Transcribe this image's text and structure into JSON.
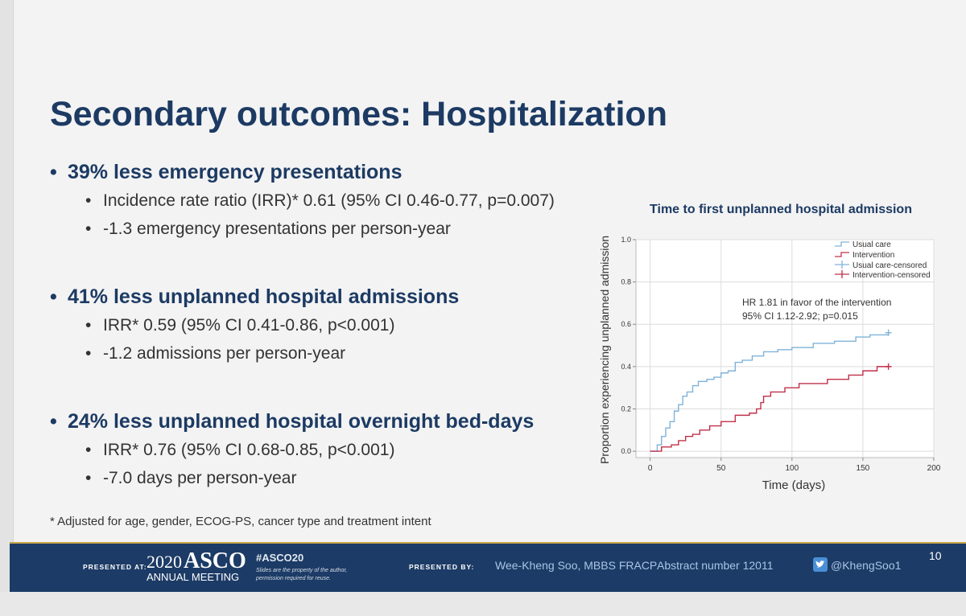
{
  "slide": {
    "title": "Secondary outcomes: Hospitalization",
    "sections": [
      {
        "heading": "39% less emergency presentations",
        "items": [
          "Incidence rate ratio (IRR)* 0.61 (95% CI 0.46-0.77, p=0.007)",
          "-1.3 emergency presentations per person-year"
        ]
      },
      {
        "heading": "41% less unplanned hospital admissions",
        "items": [
          "IRR* 0.59 (95% CI 0.41-0.86, p<0.001)",
          "-1.2 admissions per person-year"
        ]
      },
      {
        "heading": "24% less unplanned hospital overnight bed-days",
        "items": [
          "IRR* 0.76 (95% CI 0.68-0.85, p<0.001)",
          "-7.0 days per person-year"
        ]
      }
    ],
    "footnote": "* Adjusted for age, gender, ECOG-PS, cancer type and treatment intent",
    "page_number": "10"
  },
  "footer": {
    "presented_at_label": "PRESENTED AT:",
    "meeting_year": "2020",
    "meeting_brand": "ASCO",
    "meeting_sub": "ANNUAL MEETING",
    "hashtag": "#ASCO20",
    "disclaimer_line1": "Slides are the property of the author,",
    "disclaimer_line2": "permission required for reuse.",
    "presented_by_label": "PRESENTED BY:",
    "presenter": "Wee-Kheng Soo, MBBS FRACP",
    "abstract": "Abstract number 12011",
    "twitter_handle": "@KhengSoo1",
    "twitter_icon": "twitter-bird-icon",
    "brand_color": "#1c3b66"
  },
  "chart_data": {
    "type": "line",
    "step": true,
    "title": "Time to first unplanned hospital admission",
    "xlabel": "Time (days)",
    "ylabel": "Proportion experiencing unplanned admission",
    "xlim": [
      -10,
      200
    ],
    "ylim": [
      -0.03,
      1.0
    ],
    "xticks": [
      0,
      50,
      100,
      150,
      200
    ],
    "yticks": [
      0.0,
      0.2,
      0.4,
      0.6,
      0.8,
      1.0
    ],
    "grid": true,
    "legend_position": "top-right",
    "annotation": [
      "HR 1.81 in favor of the intervention",
      "95% CI 1.12-2.92; p=0.015"
    ],
    "series": [
      {
        "name": "Usual care",
        "color": "#7fb3d9",
        "points": [
          [
            0,
            0
          ],
          [
            5,
            0.03
          ],
          [
            8,
            0.07
          ],
          [
            11,
            0.11
          ],
          [
            14,
            0.14
          ],
          [
            17,
            0.19
          ],
          [
            20,
            0.22
          ],
          [
            23,
            0.26
          ],
          [
            26,
            0.28
          ],
          [
            30,
            0.31
          ],
          [
            34,
            0.33
          ],
          [
            40,
            0.34
          ],
          [
            45,
            0.35
          ],
          [
            50,
            0.37
          ],
          [
            55,
            0.38
          ],
          [
            60,
            0.42
          ],
          [
            65,
            0.43
          ],
          [
            72,
            0.45
          ],
          [
            80,
            0.47
          ],
          [
            90,
            0.48
          ],
          [
            100,
            0.49
          ],
          [
            115,
            0.51
          ],
          [
            130,
            0.52
          ],
          [
            145,
            0.54
          ],
          [
            155,
            0.55
          ],
          [
            168,
            0.56
          ]
        ],
        "censored": [
          [
            168,
            0.56
          ]
        ]
      },
      {
        "name": "Intervention",
        "color": "#c0304a",
        "points": [
          [
            0,
            0
          ],
          [
            8,
            0.02
          ],
          [
            15,
            0.03
          ],
          [
            20,
            0.05
          ],
          [
            25,
            0.07
          ],
          [
            30,
            0.08
          ],
          [
            35,
            0.1
          ],
          [
            42,
            0.12
          ],
          [
            50,
            0.14
          ],
          [
            60,
            0.17
          ],
          [
            70,
            0.18
          ],
          [
            75,
            0.2
          ],
          [
            78,
            0.23
          ],
          [
            80,
            0.26
          ],
          [
            85,
            0.28
          ],
          [
            95,
            0.3
          ],
          [
            105,
            0.32
          ],
          [
            125,
            0.34
          ],
          [
            140,
            0.36
          ],
          [
            150,
            0.38
          ],
          [
            160,
            0.4
          ],
          [
            168,
            0.4
          ]
        ],
        "censored": [
          [
            168,
            0.4
          ]
        ]
      }
    ],
    "legend": [
      {
        "label": "Usual care",
        "style": "step",
        "color": "#7fb3d9"
      },
      {
        "label": "Intervention",
        "style": "step",
        "color": "#c0304a"
      },
      {
        "label": "Usual care-censored",
        "style": "plus",
        "color": "#7fb3d9"
      },
      {
        "label": "Intervention-censored",
        "style": "plus",
        "color": "#c0304a"
      }
    ]
  }
}
